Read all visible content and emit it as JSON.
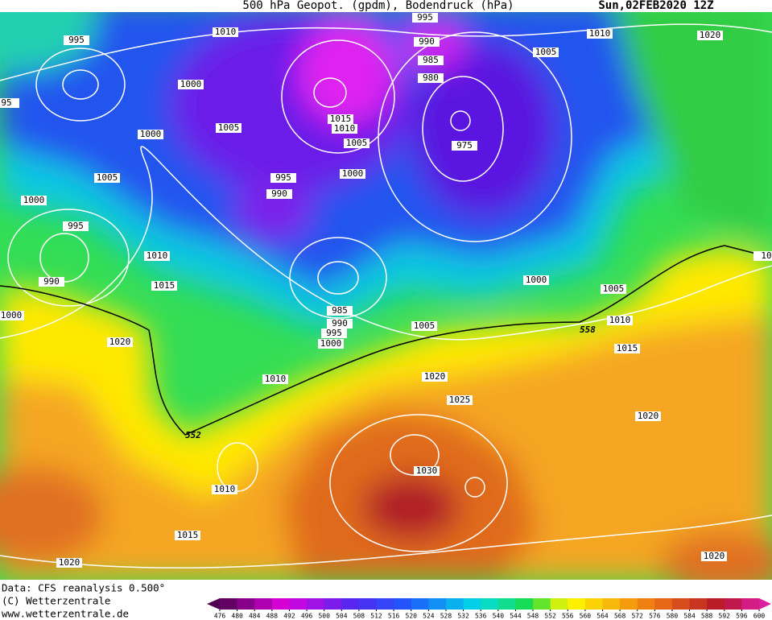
{
  "header": {
    "title": "500 hPa Geopot. (gpdm), Bodendruck (hPa)",
    "date": "Sun,02FEB2020 12Z"
  },
  "isobar_labels": [
    1010,
    995,
    990,
    995,
    985,
    980,
    1005,
    1010,
    1020,
    1000,
    95,
    1015,
    1010,
    1005,
    1005,
    975,
    1000,
    995,
    990,
    1000,
    1005,
    1000,
    995,
    1010,
    990,
    1015,
    1000,
    1005,
    10,
    1000,
    985,
    990,
    995,
    1000,
    1005,
    1010,
    1020,
    1015,
    1010,
    1020,
    1025,
    1020,
    1030,
    1010,
    1015,
    1020,
    1020
  ],
  "geopotential_labels": [
    558,
    552
  ],
  "footer": {
    "lines": [
      "Data: CFS reanalysis 0.500°",
      "(C) Wetterzentrale",
      "www.wetterzentrale.de"
    ]
  },
  "legend": {
    "ticks": [
      476,
      480,
      484,
      488,
      492,
      496,
      500,
      504,
      508,
      512,
      516,
      520,
      524,
      528,
      532,
      536,
      540,
      544,
      548,
      552,
      556,
      560,
      564,
      568,
      572,
      576,
      580,
      584,
      588,
      592,
      596,
      600
    ]
  }
}
